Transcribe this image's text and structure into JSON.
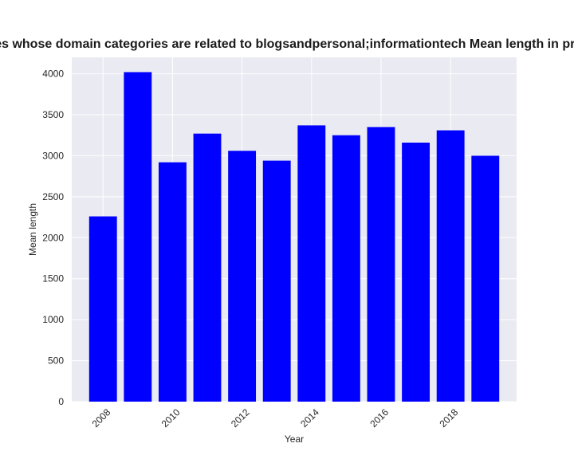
{
  "chart_data": {
    "type": "bar",
    "title": "Mean length of policies whose domain categories are related to blogsandpersonal;informationtech Mean length in privacy policies by year",
    "xlabel": "Year",
    "ylabel": "Mean length",
    "categories": [
      2008,
      2009,
      2010,
      2011,
      2012,
      2013,
      2014,
      2015,
      2016,
      2017,
      2018,
      2019
    ],
    "values": [
      2260,
      4020,
      2920,
      3270,
      3060,
      2940,
      3370,
      3250,
      3350,
      3160,
      3310,
      3000
    ],
    "x_ticks": [
      "2008",
      "2010",
      "2012",
      "2014",
      "2016",
      "2018"
    ],
    "y_ticks": [
      0,
      500,
      1000,
      1500,
      2000,
      2500,
      3000,
      3500,
      4000
    ],
    "ylim": [
      0,
      4200
    ],
    "bar_color": "#0000ff",
    "plot_background": "#eaeaf2",
    "grid": true
  }
}
